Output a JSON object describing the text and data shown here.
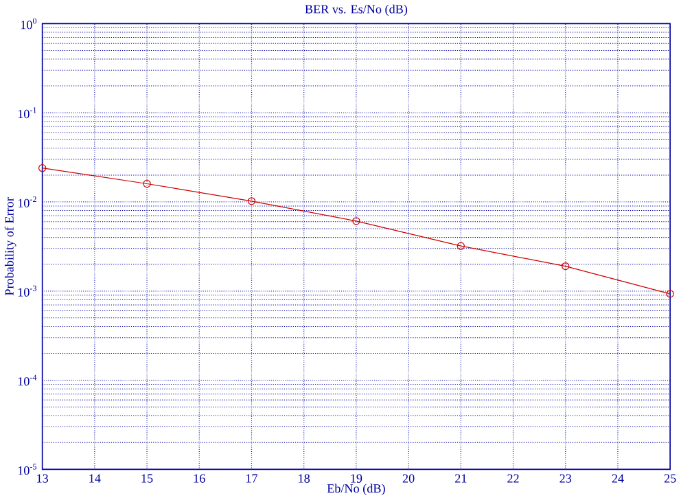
{
  "chart_data": {
    "type": "line",
    "title": "BER vs. Es/No (dB)",
    "xlabel": "Eb/No (dB)",
    "ylabel": "Probability of Error",
    "x": [
      13,
      15,
      17,
      19,
      21,
      23,
      25
    ],
    "series": [
      {
        "color": "#cc0000",
        "values": [
          0.024,
          0.016,
          0.0102,
          0.0061,
          0.0032,
          0.0019,
          0.00093
        ]
      }
    ],
    "xlim": [
      13,
      25
    ],
    "xticks": [
      13,
      14,
      15,
      16,
      17,
      18,
      19,
      20,
      21,
      22,
      23,
      24,
      25
    ],
    "ylim": [
      1e-05,
      1
    ],
    "yticks": [
      {
        "value": 1e-05,
        "label": "10$^{-5}$"
      },
      {
        "value": 0.0001,
        "label": "10$^{-4}$"
      },
      {
        "value": 0.001,
        "label": "10$^{-3}$"
      },
      {
        "value": 0.01,
        "label": "10$^{-2}$"
      },
      {
        "value": 0.1,
        "label": "10$^{-1}$"
      },
      {
        "value": 1,
        "label": "10$^{0}$"
      }
    ],
    "log": true,
    "grid": true,
    "marker": "circle",
    "line_style": "solid"
  }
}
